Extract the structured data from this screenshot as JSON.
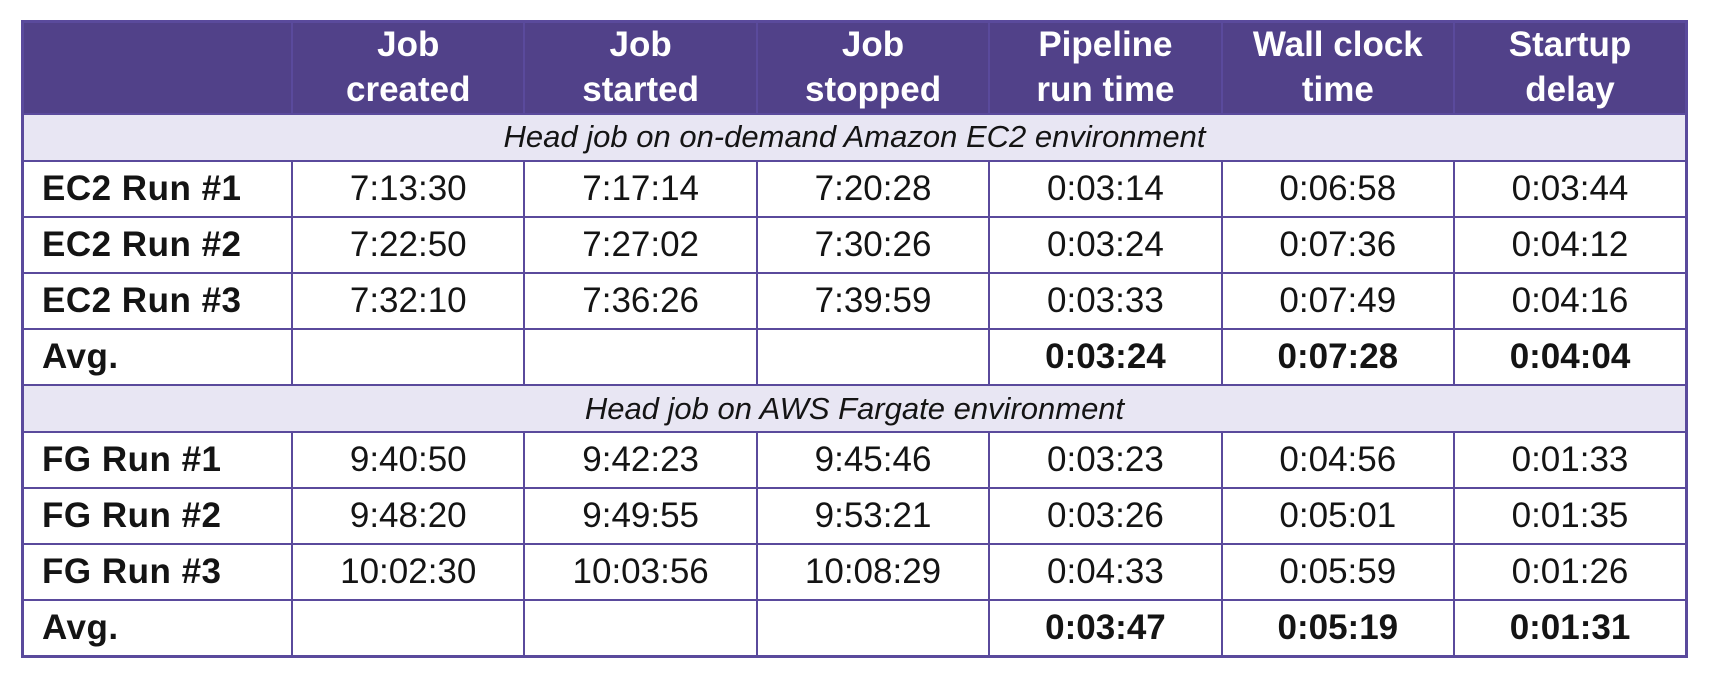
{
  "colors": {
    "header_bg": "#514189",
    "section_bg": "#e8e6f3",
    "border": "#5a4a9c",
    "header_text": "#ffffff",
    "text": "#141414",
    "page_bg": "#ffffff"
  },
  "chart_data": {
    "type": "table",
    "columns": [
      "",
      "Job created",
      "Job started",
      "Job stopped",
      "Pipeline run time",
      "Wall clock time",
      "Startup delay"
    ],
    "header_lines": [
      {
        "l1": "Job",
        "l2": "created"
      },
      {
        "l1": "Job",
        "l2": "started"
      },
      {
        "l1": "Job",
        "l2": "stopped"
      },
      {
        "l1": "Pipeline",
        "l2": "run time"
      },
      {
        "l1": "Wall clock",
        "l2": "time"
      },
      {
        "l1": "Startup",
        "l2": "delay"
      }
    ],
    "sections": [
      {
        "title": "Head job on on-demand Amazon EC2 environment",
        "rows": [
          [
            "EC2 Run #1",
            "7:13:30",
            "7:17:14",
            "7:20:28",
            "0:03:14",
            "0:06:58",
            "0:03:44"
          ],
          [
            "EC2 Run #2",
            "7:22:50",
            "7:27:02",
            "7:30:26",
            "0:03:24",
            "0:07:36",
            "0:04:12"
          ],
          [
            "EC2 Run #3",
            "7:32:10",
            "7:36:26",
            "7:39:59",
            "0:03:33",
            "0:07:49",
            "0:04:16"
          ]
        ],
        "avg": [
          "Avg.",
          "",
          "",
          "",
          "0:03:24",
          "0:07:28",
          "0:04:04"
        ]
      },
      {
        "title": "Head job on AWS Fargate environment",
        "rows": [
          [
            "FG Run #1",
            "9:40:50",
            "9:42:23",
            "9:45:46",
            "0:03:23",
            "0:04:56",
            "0:01:33"
          ],
          [
            "FG Run #2",
            "9:48:20",
            "9:49:55",
            "9:53:21",
            "0:03:26",
            "0:05:01",
            "0:01:35"
          ],
          [
            "FG Run #3",
            "10:02:30",
            "10:03:56",
            "10:08:29",
            "0:04:33",
            "0:05:59",
            "0:01:26"
          ]
        ],
        "avg": [
          "Avg.",
          "",
          "",
          "",
          "0:03:47",
          "0:05:19",
          "0:01:31"
        ]
      }
    ]
  }
}
